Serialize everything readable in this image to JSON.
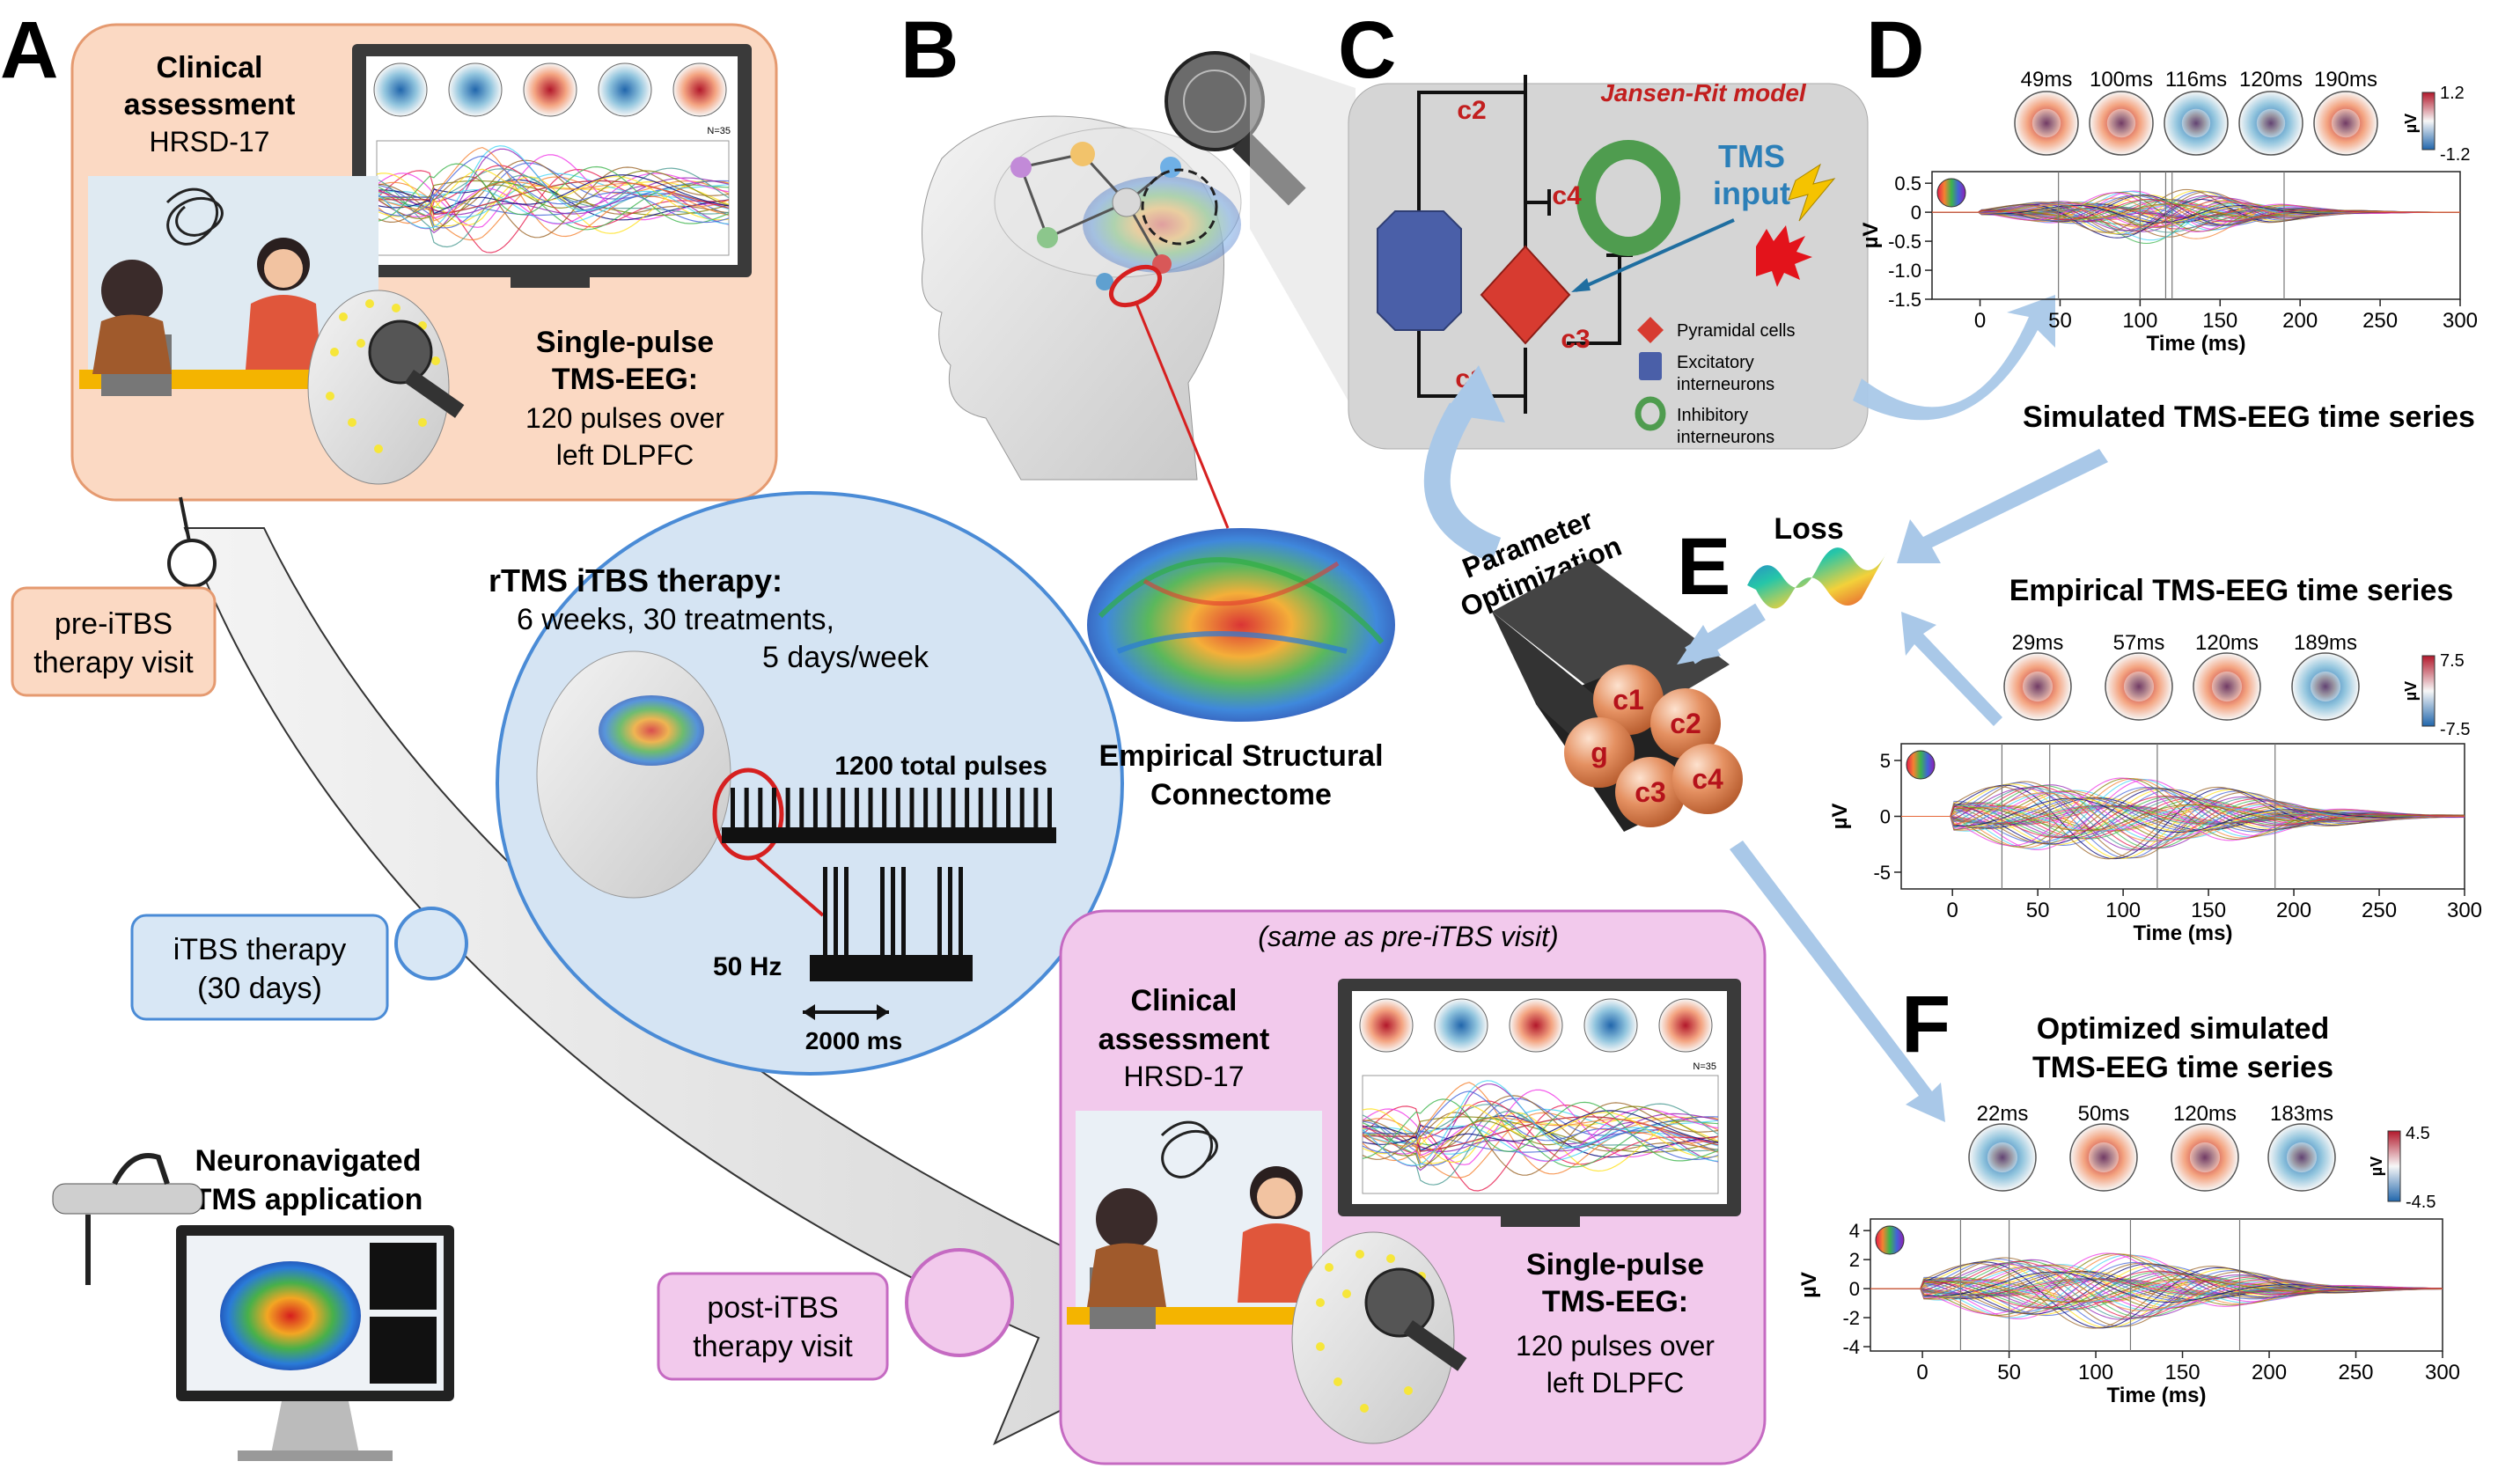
{
  "panels": {
    "A": {
      "letter": "A",
      "clinical_title_1": "Clinical",
      "clinical_title_2": "assessment",
      "clinical_scale": "HRSD-17",
      "tms_title_1": "Single-pulse",
      "tms_title_2": "TMS-EEG:",
      "tms_desc_1": "120 pulses over",
      "tms_desc_2": "left DLPFC",
      "monitor_label": "N=35",
      "pre_visit_1": "pre-iTBS",
      "pre_visit_2": "therapy visit",
      "itbs_1": "iTBS therapy",
      "itbs_2": "(30 days)",
      "post_visit_1": "post-iTBS",
      "post_visit_2": "therapy visit",
      "neuronav_1": "Neuronavigated",
      "neuronav_2": "TMS application"
    },
    "rtms": {
      "title": "rTMS iTBS therapy:",
      "line1": "6 weeks, 30 treatments,",
      "line2": "5 days/week",
      "total_pulses": "1200 total pulses",
      "freq": "50 Hz",
      "duration": "2000 ms"
    },
    "post": {
      "same_as": "(same as pre-iTBS visit)",
      "clinical_title_1": "Clinical",
      "clinical_title_2": "assessment",
      "clinical_scale": "HRSD-17",
      "tms_title_1": "Single-pulse",
      "tms_title_2": "TMS-EEG:",
      "tms_desc_1": "120 pulses over",
      "tms_desc_2": "left DLPFC",
      "monitor_label": "N=35"
    },
    "B": {
      "letter": "B",
      "connectome_1": "Empirical Structural",
      "connectome_2": "Connectome"
    },
    "C": {
      "letter": "C",
      "model_title": "Jansen-Rit model",
      "c1": "c1",
      "c2": "c2",
      "c3": "c3",
      "c4": "c4",
      "tms_input_1": "TMS",
      "tms_input_2": "input",
      "legend": [
        "Pyramidal cells",
        "Excitatory",
        "interneurons",
        "Inhibitory",
        "interneurons"
      ]
    },
    "D": {
      "letter": "D",
      "title": "Simulated TMS-EEG time series",
      "topo_times": [
        "49ms",
        "100ms",
        "116ms",
        "120ms",
        "190ms"
      ],
      "cbar_max": "1.2",
      "cbar_min": "-1.2",
      "cbar_unit": "µV"
    },
    "E": {
      "letter": "E",
      "param_opt_1": "Parameter",
      "param_opt_2": "Optimization",
      "loss": "Loss",
      "title": "Empirical TMS-EEG time series",
      "balls": [
        "c1",
        "c2",
        "g",
        "c3",
        "c4"
      ],
      "topo_times": [
        "29ms",
        "57ms",
        "120ms",
        "189ms"
      ],
      "cbar_max": "7.5",
      "cbar_min": "-7.5",
      "cbar_unit": "µV"
    },
    "F": {
      "letter": "F",
      "title_1": "Optimized simulated",
      "title_2": "TMS-EEG time series",
      "topo_times": [
        "22ms",
        "50ms",
        "120ms",
        "183ms"
      ],
      "cbar_max": "4.5",
      "cbar_min": "-4.5",
      "cbar_unit": "µV"
    }
  },
  "chart_data": [
    {
      "type": "line",
      "title": "Simulated TMS-EEG time series",
      "xlabel": "Time (ms)",
      "ylabel": "µV",
      "xlim": [
        -30,
        300
      ],
      "ylim": [
        -1.5,
        0.7
      ],
      "xticks": [
        "0",
        "50",
        "100",
        "150",
        "200",
        "250",
        "300"
      ],
      "yticks": [
        "0.5",
        "0",
        "-0.5",
        "-1.0",
        "-1.5"
      ],
      "ytick_values": [
        0.5,
        0,
        -0.5,
        -1.0,
        -1.5
      ],
      "marker_times": [
        49,
        100,
        116,
        120,
        190
      ],
      "grid": false
    },
    {
      "type": "line",
      "title": "Empirical TMS-EEG time series",
      "xlabel": "Time (ms)",
      "ylabel": "µV",
      "xlim": [
        -30,
        300
      ],
      "ylim": [
        -6.5,
        6.5
      ],
      "xticks": [
        "0",
        "50",
        "100",
        "150",
        "200",
        "250",
        "300"
      ],
      "yticks": [
        "5",
        "0",
        "-5"
      ],
      "ytick_values": [
        5,
        0,
        -5
      ],
      "marker_times": [
        29,
        57,
        120,
        189
      ],
      "grid": false
    },
    {
      "type": "line",
      "title": "Optimized simulated TMS-EEG time series",
      "xlabel": "Time (ms)",
      "ylabel": "µV",
      "xlim": [
        -30,
        300
      ],
      "ylim": [
        -4.3,
        4.8
      ],
      "xticks": [
        "0",
        "50",
        "100",
        "150",
        "200",
        "250",
        "300"
      ],
      "yticks": [
        "4",
        "2",
        "0",
        "-2",
        "-4"
      ],
      "ytick_values": [
        4,
        2,
        0,
        -2,
        -4
      ],
      "marker_times": [
        22,
        50,
        120,
        183
      ],
      "grid": false
    }
  ]
}
